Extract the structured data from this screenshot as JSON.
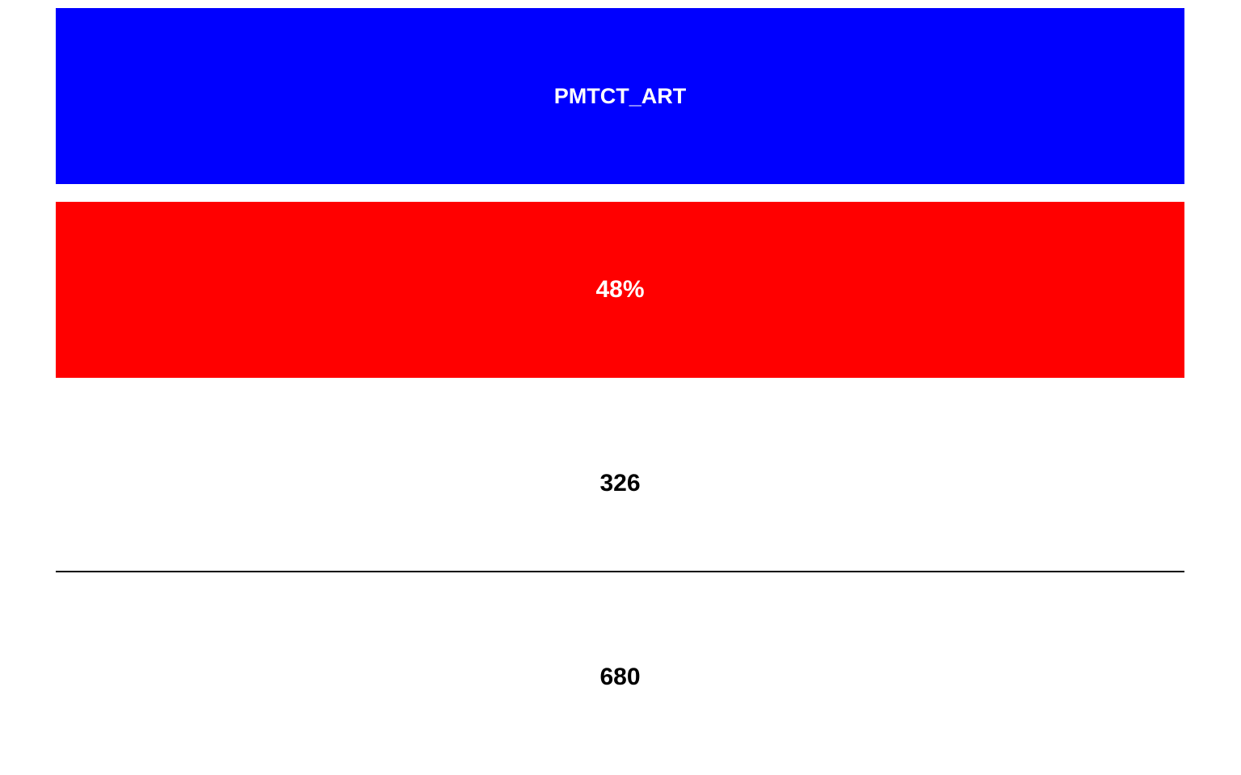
{
  "indicator": {
    "name": "PMTCT_ART",
    "background_color": "#0000ff"
  },
  "achievement": {
    "percent": "48%",
    "value": 48,
    "background_color": "#ff0000"
  },
  "numerator": {
    "value": "326"
  },
  "denominator": {
    "value": "680"
  }
}
